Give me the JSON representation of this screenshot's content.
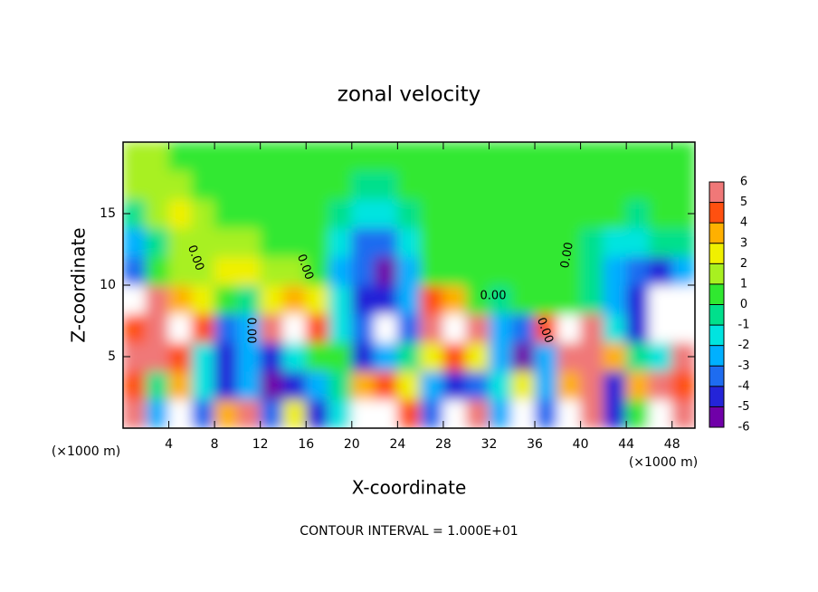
{
  "chart_data": {
    "type": "heatmap",
    "title": "zonal velocity",
    "x_label": "X-coordinate",
    "y_label": "Z-coordinate",
    "x_unit_labels": [
      "(×1000 m)",
      "(×1000 m)"
    ],
    "footer": "CONTOUR INTERVAL = 1.000E+01",
    "contour_labels": [
      "0.00",
      "0.00",
      "0.00",
      "0.00",
      "0.00",
      "0.00"
    ],
    "xlim": [
      0,
      50
    ],
    "ylim": [
      0,
      20
    ],
    "xticks": [
      4,
      8,
      12,
      16,
      20,
      24,
      28,
      32,
      36,
      40,
      44,
      48
    ],
    "yticks": [
      5,
      10,
      15
    ],
    "x": [
      1,
      3,
      5,
      7,
      9,
      11,
      13,
      15,
      17,
      19,
      21,
      23,
      25,
      27,
      29,
      31,
      33,
      35,
      37,
      39,
      41,
      43,
      45,
      47,
      49
    ],
    "y": [
      1,
      3,
      5,
      7,
      9,
      11,
      13,
      15,
      17,
      19
    ],
    "z": [
      [
        5,
        -3,
        7,
        -4,
        3,
        6,
        -4,
        2,
        -5,
        -2,
        7,
        7,
        4,
        -4,
        7,
        5,
        -3,
        7,
        -4,
        7,
        6,
        -5,
        0,
        7,
        5
      ],
      [
        4,
        -1,
        3,
        -2,
        -5,
        -3,
        -6,
        -5,
        -3,
        -1,
        3,
        4,
        2,
        -3,
        -5,
        -4,
        -2,
        2,
        -3,
        3,
        5,
        -5,
        3,
        5,
        4
      ],
      [
        5,
        6,
        4,
        -2,
        -5,
        -3,
        -5,
        -2,
        0,
        0,
        -5,
        -3,
        -1,
        2,
        4,
        2,
        -3,
        -6,
        -3,
        5,
        5,
        3,
        -1,
        -2,
        5
      ],
      [
        4,
        5,
        7,
        4,
        -4,
        -3,
        5,
        7,
        4,
        -2,
        -4,
        7,
        -4,
        5,
        7,
        5,
        -3,
        -4,
        4,
        7,
        5,
        -2,
        -5,
        7,
        -7
      ],
      [
        -7,
        5,
        3,
        2,
        0,
        -1,
        2,
        3,
        2,
        -2,
        -5,
        -5,
        -3,
        4,
        3,
        0,
        -1,
        0,
        0,
        0,
        -1,
        -3,
        -5,
        -7,
        -7
      ],
      [
        -4,
        0,
        1,
        1,
        2,
        2,
        1,
        1,
        0,
        -3,
        -4,
        -6,
        -3,
        0,
        0,
        0,
        0,
        0,
        0,
        0,
        -1,
        -3,
        -4,
        -5,
        -3
      ],
      [
        -3,
        -1,
        1,
        1,
        1,
        1,
        0,
        0,
        0,
        -2,
        -4,
        -4,
        -2,
        0,
        0,
        0,
        0,
        0,
        0,
        0,
        -1,
        -2,
        -2,
        -1,
        -1
      ],
      [
        -1,
        1,
        2,
        1,
        0,
        0,
        0,
        0,
        0,
        -1,
        -2,
        -2,
        -1,
        0,
        0,
        0,
        0,
        0,
        0,
        0,
        0,
        0,
        -1,
        0,
        0
      ],
      [
        1,
        1,
        1,
        0,
        0,
        0,
        0,
        0,
        0,
        0,
        -1,
        -1,
        0,
        0,
        0,
        0,
        0,
        0,
        0,
        0,
        0,
        0,
        0,
        0,
        0
      ],
      [
        1,
        1,
        0,
        0,
        0,
        0,
        0,
        0,
        0,
        0,
        0,
        0,
        0,
        0,
        0,
        0,
        0,
        0,
        0,
        0,
        0,
        0,
        0,
        0,
        0
      ]
    ],
    "colorbar": {
      "levels": [
        -6,
        -5,
        -4,
        -3,
        -2,
        -1,
        0,
        1,
        2,
        3,
        4,
        5,
        6
      ],
      "colors": [
        "#7000a8",
        "#2424d8",
        "#1e6cf0",
        "#00b0ff",
        "#00e4e0",
        "#00e08c",
        "#30e830",
        "#a8f020",
        "#f0f000",
        "#ffb000",
        "#ff5010",
        "#f07878"
      ]
    }
  }
}
